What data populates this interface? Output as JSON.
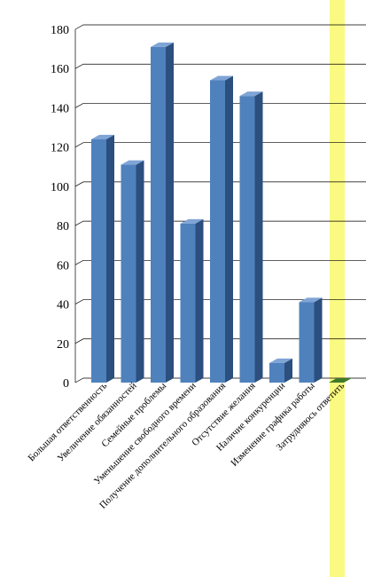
{
  "chart_data": {
    "type": "bar",
    "title": "",
    "xlabel": "",
    "ylabel": "",
    "ylim": [
      0,
      180
    ],
    "yticks": [
      0,
      20,
      40,
      60,
      80,
      100,
      120,
      140,
      160,
      180
    ],
    "grid": true,
    "legend": "none",
    "categories": [
      "Большая ответственность",
      "Увеличение обязанностей",
      "Семейные проблемы",
      "Уменьшение свободного времени",
      "Получение дополнительного образования",
      "Отсутствие желания",
      "Наличие конкуренции",
      "Изменение графика работы",
      "Затрудняюсь ответить"
    ],
    "values": [
      124,
      111,
      171,
      81,
      154,
      146,
      10,
      41,
      0
    ]
  },
  "colors": {
    "bar_front": "#4f81bd",
    "bar_side": "#2b4f7e",
    "bar_top": "#7fa4d6",
    "last_bar": "#3f7a2a",
    "highlight_band": "#fafa82",
    "grid": "#000000"
  }
}
